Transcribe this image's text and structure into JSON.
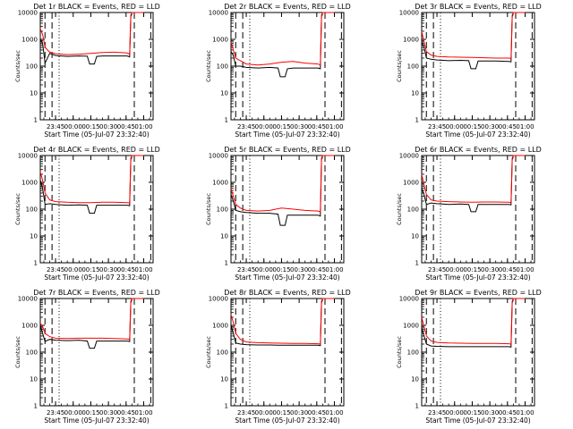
{
  "chart_data": [
    {
      "type": "line",
      "title": "Det 1r BLACK = Events, RED = LLD",
      "xlabel": "Start Time (05-Jul-07 23:32:40)",
      "ylabel": "Counts/sec",
      "x_ticks": [
        "23:45",
        "00:00",
        "00:15",
        "00:30",
        "00:45",
        "01:00"
      ],
      "y_ticks": [
        "1",
        "10",
        "100",
        "1000",
        "10000"
      ],
      "y_scale": "log",
      "ylim": [
        1,
        10000
      ],
      "xlim": [
        "23:32",
        "01:08"
      ],
      "dash_markers": [
        "23:36",
        "23:42",
        "00:52",
        "01:06"
      ],
      "dot_markers": [
        "23:48"
      ],
      "series": [
        {
          "color": "#000000",
          "x": [
            "23:32",
            "23:34",
            "23:36",
            "23:40",
            "23:45",
            "23:55",
            "00:05",
            "00:12",
            "00:14",
            "00:18",
            "00:20",
            "00:25",
            "00:35",
            "00:46",
            "00:48",
            "00:49",
            "00:50"
          ],
          "values": [
            1000,
            700,
            130,
            300,
            250,
            230,
            240,
            235,
            120,
            120,
            230,
            240,
            240,
            240,
            220,
            7000,
            9000
          ]
        },
        {
          "color": "#ff0000",
          "x": [
            "23:32",
            "23:34",
            "23:36",
            "23:40",
            "23:45",
            "23:55",
            "00:05",
            "00:15",
            "00:25",
            "00:35",
            "00:46",
            "00:48",
            "00:49",
            "00:50",
            "00:55",
            "01:00"
          ],
          "values": [
            2500,
            1500,
            500,
            330,
            290,
            270,
            280,
            300,
            320,
            330,
            310,
            280,
            8000,
            10000,
            10000,
            10000
          ]
        }
      ]
    },
    {
      "type": "line",
      "title": "Det 2r BLACK = Events, RED = LLD",
      "xlabel": "Start Time (05-Jul-07 23:32:40)",
      "ylabel": "Counts/sec",
      "x_ticks": [
        "23:45",
        "00:00",
        "00:15",
        "00:30",
        "00:45",
        "01:00"
      ],
      "y_ticks": [
        "1",
        "10",
        "100",
        "1000",
        "10000"
      ],
      "y_scale": "log",
      "ylim": [
        1,
        10000
      ],
      "xlim": [
        "23:32",
        "01:08"
      ],
      "dash_markers": [
        "23:36",
        "23:42",
        "00:52",
        "01:06"
      ],
      "dot_markers": [
        "23:48"
      ],
      "series": [
        {
          "color": "#000000",
          "x": [
            "23:32",
            "23:34",
            "23:36",
            "23:40",
            "23:45",
            "23:55",
            "00:05",
            "00:12",
            "00:14",
            "00:18",
            "00:20",
            "00:25",
            "00:35",
            "00:46",
            "00:48",
            "00:49",
            "00:50"
          ],
          "values": [
            350,
            250,
            100,
            100,
            90,
            85,
            90,
            85,
            40,
            40,
            80,
            85,
            85,
            85,
            80,
            7000,
            9000
          ]
        },
        {
          "color": "#ff0000",
          "x": [
            "23:32",
            "23:34",
            "23:36",
            "23:40",
            "23:45",
            "23:55",
            "00:05",
            "00:15",
            "00:25",
            "00:35",
            "00:46",
            "00:48",
            "00:49",
            "00:50",
            "00:55",
            "01:00"
          ],
          "values": [
            800,
            400,
            200,
            160,
            120,
            110,
            120,
            140,
            150,
            130,
            120,
            110,
            8000,
            10000,
            10000,
            10000
          ]
        }
      ]
    },
    {
      "type": "line",
      "title": "Det 3r BLACK = Events, RED = LLD",
      "xlabel": "Start Time (05-Jul-07 23:32:40)",
      "ylabel": "Counts/sec",
      "x_ticks": [
        "23:45",
        "00:00",
        "00:15",
        "00:30",
        "00:45",
        "01:00"
      ],
      "y_ticks": [
        "1",
        "10",
        "100",
        "1000",
        "10000"
      ],
      "y_scale": "log",
      "ylim": [
        1,
        10000
      ],
      "xlim": [
        "23:32",
        "01:08"
      ],
      "dash_markers": [
        "23:36",
        "23:42",
        "00:52",
        "01:06"
      ],
      "dot_markers": [
        "23:48"
      ],
      "series": [
        {
          "color": "#000000",
          "x": [
            "23:32",
            "23:34",
            "23:36",
            "23:40",
            "23:45",
            "23:55",
            "00:05",
            "00:12",
            "00:14",
            "00:18",
            "00:20",
            "00:25",
            "00:35",
            "00:46",
            "00:48",
            "00:49",
            "00:50"
          ],
          "values": [
            800,
            500,
            200,
            180,
            170,
            160,
            165,
            160,
            80,
            80,
            155,
            155,
            155,
            150,
            145,
            7000,
            9000
          ]
        },
        {
          "color": "#ff0000",
          "x": [
            "23:32",
            "23:34",
            "23:36",
            "23:40",
            "23:45",
            "23:55",
            "00:05",
            "00:15",
            "00:25",
            "00:35",
            "00:46",
            "00:48",
            "00:49",
            "00:50",
            "00:55",
            "01:00"
          ],
          "values": [
            2000,
            800,
            350,
            260,
            230,
            220,
            215,
            210,
            205,
            200,
            200,
            195,
            8000,
            10000,
            10000,
            10000
          ]
        }
      ]
    },
    {
      "type": "line",
      "title": "Det 4r BLACK = Events, RED = LLD",
      "xlabel": "Start Time (05-Jul-07 23:32:40)",
      "ylabel": "Counts/sec",
      "x_ticks": [
        "23:45",
        "00:00",
        "00:15",
        "00:30",
        "00:45",
        "01:00"
      ],
      "y_ticks": [
        "1",
        "10",
        "100",
        "1000",
        "10000"
      ],
      "y_scale": "log",
      "ylim": [
        1,
        10000
      ],
      "xlim": [
        "23:32",
        "01:08"
      ],
      "dash_markers": [
        "23:36",
        "23:42",
        "00:52",
        "01:06"
      ],
      "dot_markers": [
        "23:48"
      ],
      "series": [
        {
          "color": "#000000",
          "x": [
            "23:32",
            "23:34",
            "23:36",
            "23:40",
            "23:45",
            "23:55",
            "00:05",
            "00:12",
            "00:14",
            "00:18",
            "00:20",
            "00:25",
            "00:35",
            "00:46",
            "00:48",
            "00:49",
            "00:50"
          ],
          "values": [
            1200,
            600,
            150,
            160,
            150,
            140,
            145,
            140,
            70,
            70,
            140,
            140,
            140,
            140,
            135,
            7000,
            9000
          ]
        },
        {
          "color": "#ff0000",
          "x": [
            "23:32",
            "23:34",
            "23:36",
            "23:40",
            "23:45",
            "23:55",
            "00:05",
            "00:15",
            "00:25",
            "00:35",
            "00:46",
            "00:48",
            "00:49",
            "00:50",
            "00:55",
            "01:00"
          ],
          "values": [
            2500,
            1200,
            400,
            220,
            190,
            180,
            175,
            175,
            180,
            180,
            175,
            170,
            8000,
            10000,
            10000,
            10000
          ]
        }
      ]
    },
    {
      "type": "line",
      "title": "Det 5r BLACK = Events, RED = LLD",
      "xlabel": "Start Time (05-Jul-07 23:32:40)",
      "ylabel": "Counts/sec",
      "x_ticks": [
        "23:45",
        "00:00",
        "00:15",
        "00:30",
        "00:45",
        "01:00"
      ],
      "y_ticks": [
        "1",
        "10",
        "100",
        "1000",
        "10000"
      ],
      "y_scale": "log",
      "ylim": [
        1,
        10000
      ],
      "xlim": [
        "23:32",
        "01:08"
      ],
      "dash_markers": [
        "23:36",
        "23:42",
        "00:52",
        "01:06"
      ],
      "dot_markers": [
        "23:48"
      ],
      "series": [
        {
          "color": "#000000",
          "x": [
            "23:32",
            "23:34",
            "23:36",
            "23:40",
            "23:45",
            "23:55",
            "00:05",
            "00:12",
            "00:14",
            "00:18",
            "00:20",
            "00:25",
            "00:35",
            "00:46",
            "00:48",
            "00:49",
            "00:50"
          ],
          "values": [
            350,
            200,
            90,
            80,
            75,
            70,
            70,
            65,
            25,
            25,
            60,
            60,
            60,
            60,
            55,
            7000,
            9000
          ]
        },
        {
          "color": "#ff0000",
          "x": [
            "23:32",
            "23:34",
            "23:36",
            "23:40",
            "23:45",
            "23:55",
            "00:05",
            "00:15",
            "00:25",
            "00:35",
            "00:46",
            "00:48",
            "00:49",
            "00:50",
            "00:55",
            "01:00"
          ],
          "values": [
            600,
            300,
            150,
            110,
            90,
            85,
            90,
            110,
            100,
            90,
            85,
            80,
            8000,
            10000,
            10000,
            10000
          ]
        }
      ]
    },
    {
      "type": "line",
      "title": "Det 6r BLACK = Events, RED = LLD",
      "xlabel": "Start Time (05-Jul-07 23:32:40)",
      "ylabel": "Counts/sec",
      "x_ticks": [
        "23:45",
        "00:00",
        "00:15",
        "00:30",
        "00:45",
        "01:00"
      ],
      "y_ticks": [
        "1",
        "10",
        "100",
        "1000",
        "10000"
      ],
      "y_scale": "log",
      "ylim": [
        1,
        10000
      ],
      "xlim": [
        "23:32",
        "01:08"
      ],
      "dash_markers": [
        "23:36",
        "23:42",
        "00:52",
        "01:06"
      ],
      "dot_markers": [
        "23:48"
      ],
      "series": [
        {
          "color": "#000000",
          "x": [
            "23:32",
            "23:34",
            "23:36",
            "23:40",
            "23:45",
            "23:55",
            "00:05",
            "00:12",
            "00:14",
            "00:18",
            "00:20",
            "00:25",
            "00:35",
            "00:46",
            "00:48",
            "00:49",
            "00:50"
          ],
          "values": [
            600,
            350,
            150,
            170,
            160,
            150,
            155,
            150,
            80,
            80,
            150,
            150,
            150,
            150,
            145,
            7000,
            9000
          ]
        },
        {
          "color": "#ff0000",
          "x": [
            "23:32",
            "23:34",
            "23:36",
            "23:40",
            "23:45",
            "23:55",
            "00:05",
            "00:15",
            "00:25",
            "00:35",
            "00:46",
            "00:48",
            "00:49",
            "00:50",
            "00:55",
            "01:00"
          ],
          "values": [
            2000,
            800,
            350,
            220,
            200,
            190,
            185,
            180,
            185,
            185,
            180,
            175,
            8000,
            10000,
            10000,
            10000
          ]
        }
      ]
    },
    {
      "type": "line",
      "title": "Det 7r BLACK = Events, RED = LLD",
      "xlabel": "Start Time (05-Jul-07 23:32:40)",
      "ylabel": "Counts/sec",
      "x_ticks": [
        "23:45",
        "00:00",
        "00:15",
        "00:30",
        "00:45",
        "01:00"
      ],
      "y_ticks": [
        "1",
        "10",
        "100",
        "1000",
        "10000"
      ],
      "y_scale": "log",
      "ylim": [
        1,
        10000
      ],
      "xlim": [
        "23:32",
        "01:08"
      ],
      "dash_markers": [
        "23:36",
        "23:42",
        "00:52",
        "01:06"
      ],
      "dot_markers": [
        "23:48"
      ],
      "series": [
        {
          "color": "#000000",
          "x": [
            "23:32",
            "23:34",
            "23:36",
            "23:40",
            "23:45",
            "23:55",
            "00:05",
            "00:12",
            "00:14",
            "00:18",
            "00:20",
            "00:25",
            "00:35",
            "00:46",
            "00:48",
            "00:49",
            "00:50"
          ],
          "values": [
            1000,
            500,
            250,
            300,
            280,
            270,
            280,
            260,
            140,
            140,
            260,
            260,
            260,
            260,
            250,
            7000,
            9000
          ]
        },
        {
          "color": "#ff0000",
          "x": [
            "23:32",
            "23:34",
            "23:36",
            "23:40",
            "23:45",
            "23:55",
            "00:05",
            "00:15",
            "00:25",
            "00:35",
            "00:46",
            "00:48",
            "00:49",
            "00:50",
            "00:55",
            "01:00"
          ],
          "values": [
            1200,
            900,
            500,
            380,
            330,
            320,
            330,
            330,
            330,
            320,
            310,
            300,
            8000,
            10000,
            10000,
            10000
          ]
        }
      ]
    },
    {
      "type": "line",
      "title": "Det 8r BLACK = Events, RED = LLD",
      "xlabel": "Start Time (05-Jul-07 23:32:40)",
      "ylabel": "Counts/sec",
      "x_ticks": [
        "23:45",
        "00:00",
        "00:15",
        "00:30",
        "00:45",
        "01:00"
      ],
      "y_ticks": [
        "1",
        "10",
        "100",
        "1000",
        "10000"
      ],
      "y_scale": "log",
      "ylim": [
        1,
        10000
      ],
      "xlim": [
        "23:32",
        "01:08"
      ],
      "dash_markers": [
        "23:36",
        "23:42",
        "00:52",
        "01:06"
      ],
      "dot_markers": [
        "23:48"
      ],
      "series": [
        {
          "color": "#000000",
          "x": [
            "23:32",
            "23:34",
            "23:36",
            "23:40",
            "23:45",
            "23:55",
            "00:05",
            "00:12",
            "00:14",
            "00:18",
            "00:20",
            "00:25",
            "00:35",
            "00:46",
            "00:48",
            "00:49",
            "00:50"
          ],
          "values": [
            1000,
            500,
            220,
            200,
            190,
            185,
            185,
            180,
            180,
            180,
            180,
            180,
            180,
            180,
            175,
            7000,
            9000
          ]
        },
        {
          "color": "#ff0000",
          "x": [
            "23:32",
            "23:34",
            "23:36",
            "23:40",
            "23:45",
            "23:55",
            "00:05",
            "00:15",
            "00:25",
            "00:35",
            "00:46",
            "00:48",
            "00:49",
            "00:50",
            "00:55",
            "01:00"
          ],
          "values": [
            2500,
            1300,
            500,
            300,
            240,
            225,
            220,
            215,
            210,
            210,
            205,
            200,
            8000,
            10000,
            10000,
            10000
          ]
        }
      ]
    },
    {
      "type": "line",
      "title": "Det 9r BLACK = Events, RED = LLD",
      "xlabel": "Start Time (05-Jul-07 23:32:40)",
      "ylabel": "Counts/sec",
      "x_ticks": [
        "23:45",
        "00:00",
        "00:15",
        "00:30",
        "00:45",
        "01:00"
      ],
      "y_ticks": [
        "1",
        "10",
        "100",
        "1000",
        "10000"
      ],
      "y_scale": "log",
      "ylim": [
        1,
        10000
      ],
      "xlim": [
        "23:32",
        "01:08"
      ],
      "dash_markers": [
        "23:36",
        "23:42",
        "00:52",
        "01:06"
      ],
      "dot_markers": [
        "23:48"
      ],
      "series": [
        {
          "color": "#000000",
          "x": [
            "23:32",
            "23:34",
            "23:36",
            "23:40",
            "23:45",
            "23:55",
            "00:05",
            "00:12",
            "00:14",
            "00:18",
            "00:20",
            "00:25",
            "00:35",
            "00:46",
            "00:48",
            "00:49",
            "00:50"
          ],
          "values": [
            800,
            400,
            200,
            170,
            165,
            160,
            160,
            160,
            160,
            160,
            160,
            160,
            160,
            160,
            155,
            7000,
            9000
          ]
        },
        {
          "color": "#ff0000",
          "x": [
            "23:32",
            "23:34",
            "23:36",
            "23:40",
            "23:45",
            "23:55",
            "00:05",
            "00:15",
            "00:25",
            "00:35",
            "00:46",
            "00:48",
            "00:49",
            "00:50",
            "00:55",
            "01:00"
          ],
          "values": [
            2000,
            900,
            400,
            260,
            230,
            220,
            215,
            210,
            210,
            210,
            205,
            200,
            8000,
            10000,
            10000,
            10000
          ]
        }
      ]
    }
  ]
}
